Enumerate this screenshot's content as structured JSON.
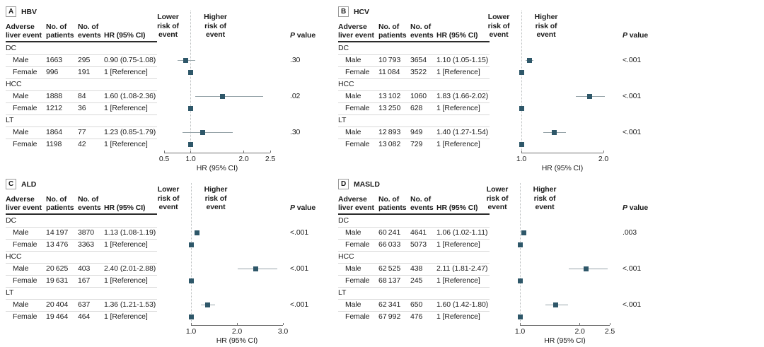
{
  "figure": {
    "background": "#ffffff",
    "columns": {
      "event": "Adverse\nliver event",
      "patients": "No. of\npatients",
      "events": "No. of\nevents",
      "hr": "HR (95% CI)"
    },
    "risk_labels": {
      "lower": "Lower\nrisk of\nevent",
      "higher": "Higher\nrisk of\nevent"
    },
    "p_header": {
      "italic": "P",
      "rest": " value"
    },
    "xlabel": "HR (95% CI)",
    "colors": {
      "marker": "#2E5769",
      "ci_line": "#96A4A9",
      "ref_line": "#B8BCBD",
      "axis_line": "#6E6E6E",
      "header_rule": "#2B2B2B",
      "row_separator": "#D9D9D9",
      "text": "#1C1C1C"
    }
  },
  "chart_data": [
    {
      "type": "forest",
      "letter": "A",
      "title": "HBV",
      "xlabel": "HR (95% CI)",
      "axis": {
        "range": [
          0.5,
          2.5
        ],
        "ref": 1.0,
        "ticks": [
          0.5,
          1.0,
          2.0,
          2.5
        ],
        "tick_labels": [
          "0.5",
          "1.0",
          "2.0",
          "2.5"
        ]
      },
      "groups": [
        {
          "name": "DC",
          "rows": [
            {
              "sex": "Male",
              "patients": "1663",
              "events": "295",
              "hr_ci": "0.90 (0.75-1.08)",
              "hr": 0.9,
              "lo": 0.75,
              "hi": 1.08,
              "p": ".30"
            },
            {
              "sex": "Female",
              "patients": "996",
              "events": "191",
              "hr_ci": "1 [Reference]",
              "hr": 1.0,
              "ref": true
            }
          ]
        },
        {
          "name": "HCC",
          "rows": [
            {
              "sex": "Male",
              "patients": "1888",
              "events": "84",
              "hr_ci": "1.60 (1.08-2.36)",
              "hr": 1.6,
              "lo": 1.08,
              "hi": 2.36,
              "p": ".02"
            },
            {
              "sex": "Female",
              "patients": "1212",
              "events": "36",
              "hr_ci": "1 [Reference]",
              "hr": 1.0,
              "ref": true
            }
          ]
        },
        {
          "name": "LT",
          "rows": [
            {
              "sex": "Male",
              "patients": "1864",
              "events": "77",
              "hr_ci": "1.23 (0.85-1.79)",
              "hr": 1.23,
              "lo": 0.85,
              "hi": 1.79,
              "p": ".30"
            },
            {
              "sex": "Female",
              "patients": "1198",
              "events": "42",
              "hr_ci": "1 [Reference]",
              "hr": 1.0,
              "ref": true
            }
          ]
        }
      ]
    },
    {
      "type": "forest",
      "letter": "B",
      "title": "HCV",
      "xlabel": "HR (95% CI)",
      "axis": {
        "range": [
          1.0,
          2.0
        ],
        "ref": 1.0,
        "ticks": [
          1.0,
          2.0
        ],
        "tick_labels": [
          "1.0",
          "2.0"
        ]
      },
      "groups": [
        {
          "name": "DC",
          "rows": [
            {
              "sex": "Male",
              "patients": "10 793",
              "events": "3654",
              "hr_ci": "1.10 (1.05-1.15)",
              "hr": 1.1,
              "lo": 1.05,
              "hi": 1.15,
              "p": "<.001"
            },
            {
              "sex": "Female",
              "patients": "11 084",
              "events": "3522",
              "hr_ci": "1 [Reference]",
              "hr": 1.0,
              "ref": true
            }
          ]
        },
        {
          "name": "HCC",
          "rows": [
            {
              "sex": "Male",
              "patients": "13 102",
              "events": "1060",
              "hr_ci": "1.83 (1.66-2.02)",
              "hr": 1.83,
              "lo": 1.66,
              "hi": 2.02,
              "p": "<.001"
            },
            {
              "sex": "Female",
              "patients": "13 250",
              "events": "628",
              "hr_ci": "1 [Reference]",
              "hr": 1.0,
              "ref": true
            }
          ]
        },
        {
          "name": "LT",
          "rows": [
            {
              "sex": "Male",
              "patients": "12 893",
              "events": "949",
              "hr_ci": "1.40 (1.27-1.54)",
              "hr": 1.4,
              "lo": 1.27,
              "hi": 1.54,
              "p": "<.001"
            },
            {
              "sex": "Female",
              "patients": "13 082",
              "events": "729",
              "hr_ci": "1 [Reference]",
              "hr": 1.0,
              "ref": true
            }
          ]
        }
      ]
    },
    {
      "type": "forest",
      "letter": "C",
      "title": "ALD",
      "xlabel": "HR (95% CI)",
      "axis": {
        "range": [
          1.0,
          3.0
        ],
        "ref": 1.0,
        "ticks": [
          1.0,
          2.0,
          3.0
        ],
        "tick_labels": [
          "1.0",
          "2.0",
          "3.0"
        ]
      },
      "groups": [
        {
          "name": "DC",
          "rows": [
            {
              "sex": "Male",
              "patients": "14 197",
              "events": "3870",
              "hr_ci": "1.13 (1.08-1.19)",
              "hr": 1.13,
              "lo": 1.08,
              "hi": 1.19,
              "p": "<.001"
            },
            {
              "sex": "Female",
              "patients": "13 476",
              "events": "3363",
              "hr_ci": "1 [Reference]",
              "hr": 1.0,
              "ref": true
            }
          ]
        },
        {
          "name": "HCC",
          "rows": [
            {
              "sex": "Male",
              "patients": "20 625",
              "events": "403",
              "hr_ci": "2.40 (2.01-2.88)",
              "hr": 2.4,
              "lo": 2.01,
              "hi": 2.88,
              "p": "<.001"
            },
            {
              "sex": "Female",
              "patients": "19 631",
              "events": "167",
              "hr_ci": "1 [Reference]",
              "hr": 1.0,
              "ref": true
            }
          ]
        },
        {
          "name": "LT",
          "rows": [
            {
              "sex": "Male",
              "patients": "20 404",
              "events": "637",
              "hr_ci": "1.36 (1.21-1.53)",
              "hr": 1.36,
              "lo": 1.21,
              "hi": 1.53,
              "p": "<.001"
            },
            {
              "sex": "Female",
              "patients": "19 464",
              "events": "464",
              "hr_ci": "1 [Reference]",
              "hr": 1.0,
              "ref": true
            }
          ]
        }
      ]
    },
    {
      "type": "forest",
      "letter": "D",
      "title": "MASLD",
      "xlabel": "HR (95% CI)",
      "axis": {
        "range": [
          1.0,
          2.5
        ],
        "ref": 1.0,
        "ticks": [
          1.0,
          2.0,
          2.5
        ],
        "tick_labels": [
          "1.0",
          "2.0",
          "2.5"
        ]
      },
      "groups": [
        {
          "name": "DC",
          "rows": [
            {
              "sex": "Male",
              "patients": "60 241",
              "events": "4641",
              "hr_ci": "1.06 (1.02-1.11)",
              "hr": 1.06,
              "lo": 1.02,
              "hi": 1.11,
              "p": ".003"
            },
            {
              "sex": "Female",
              "patients": "66 033",
              "events": "5073",
              "hr_ci": "1 [Reference]",
              "hr": 1.0,
              "ref": true
            }
          ]
        },
        {
          "name": "HCC",
          "rows": [
            {
              "sex": "Male",
              "patients": "62 525",
              "events": "438",
              "hr_ci": "2.11 (1.81-2.47)",
              "hr": 2.11,
              "lo": 1.81,
              "hi": 2.47,
              "p": "<.001"
            },
            {
              "sex": "Female",
              "patients": "68 137",
              "events": "245",
              "hr_ci": "1 [Reference]",
              "hr": 1.0,
              "ref": true
            }
          ]
        },
        {
          "name": "LT",
          "rows": [
            {
              "sex": "Male",
              "patients": "62 341",
              "events": "650",
              "hr_ci": "1.60 (1.42-1.80)",
              "hr": 1.6,
              "lo": 1.42,
              "hi": 1.8,
              "p": "<.001"
            },
            {
              "sex": "Female",
              "patients": "67 992",
              "events": "476",
              "hr_ci": "1 [Reference]",
              "hr": 1.0,
              "ref": true
            }
          ]
        }
      ]
    }
  ]
}
